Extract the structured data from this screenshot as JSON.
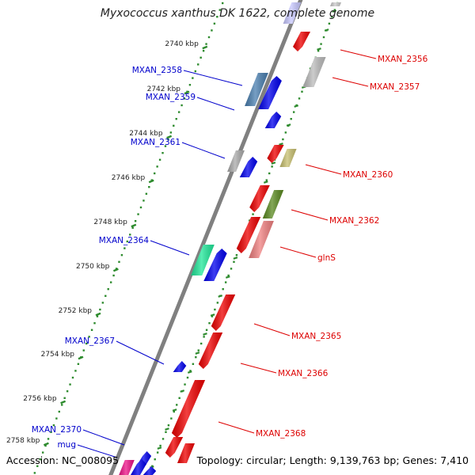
{
  "title": "Myxococcus xanthus DK 1622, complete genome",
  "footer": {
    "accession": "Accession: NC_008095",
    "summary": "Topology: circular; Length: 9,139,763 bp; Genes: 7,410"
  },
  "colors": {
    "backbone": "#808080",
    "tick_dots": "#2e8b2e",
    "forward_label": "#0000cc",
    "reverse_label": "#dd0000",
    "scale_text": "#222222"
  },
  "scale_labels": [
    "2740 kbp",
    "2742 kbp",
    "2744 kbp",
    "2746 kbp",
    "2748 kbp",
    "2750 kbp",
    "2752 kbp",
    "2754 kbp",
    "2756 kbp",
    "2758 kbp"
  ],
  "forward_genes": [
    {
      "label": "MXAN_2358",
      "color": "#4a7fb0"
    },
    {
      "label": "MXAN_2359",
      "color": "#0000ee"
    },
    {
      "label": "MXAN_2361",
      "color": "#0000ee"
    },
    {
      "label": "MXAN_2364",
      "color": "#20e89a"
    },
    {
      "label": "MXAN_2367",
      "color": "#0000ee"
    },
    {
      "label": "MXAN_2370",
      "color": "#0000ee"
    },
    {
      "label": "mug",
      "color": "#ee1188"
    }
  ],
  "reverse_genes": [
    {
      "label": "MXAN_2356",
      "color": "#ee0000"
    },
    {
      "label": "MXAN_2357",
      "color": "#bbbbbb"
    },
    {
      "label": "MXAN_2360",
      "color": "#c8c070"
    },
    {
      "label": "MXAN_2362",
      "color": "#5a8a20"
    },
    {
      "label": "glnS",
      "color": "#f08080"
    },
    {
      "label": "MXAN_2365",
      "color": "#ee0000"
    },
    {
      "label": "MXAN_2366",
      "color": "#ee0000"
    },
    {
      "label": "MXAN_2368",
      "color": "#ee0000"
    }
  ]
}
